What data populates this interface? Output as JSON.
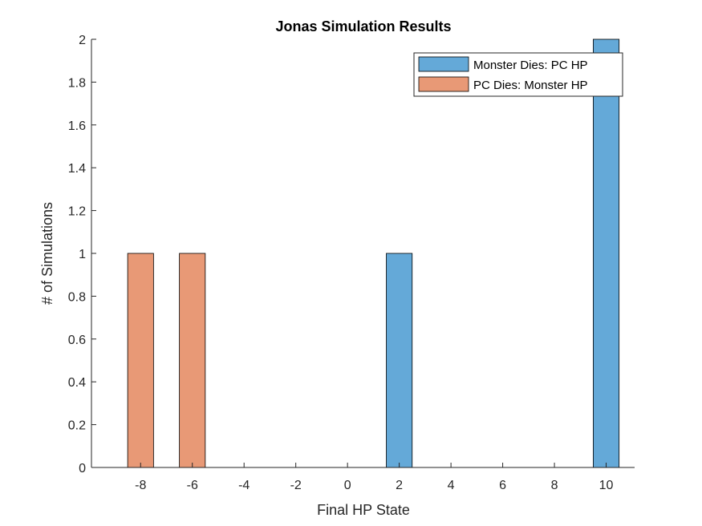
{
  "chart_data": {
    "type": "bar",
    "title": "Jonas Simulation Results",
    "xlabel": "Final HP State",
    "ylabel": "# of Simulations",
    "xlim": [
      -9.9,
      11.1
    ],
    "ylim": [
      0,
      2
    ],
    "xticks": [
      -8,
      -6,
      -4,
      -2,
      0,
      2,
      4,
      6,
      8,
      10
    ],
    "yticks": [
      0,
      0.2,
      0.4,
      0.6,
      0.8,
      1,
      1.2,
      1.4,
      1.6,
      1.8,
      2
    ],
    "bar_width": 1,
    "grid": false,
    "legend_placement": "top-right",
    "series": [
      {
        "name": "Monster Dies: PC HP",
        "color": "#64a9d8",
        "points": [
          {
            "x": 2,
            "y": 1
          },
          {
            "x": 10,
            "y": 2
          }
        ]
      },
      {
        "name": "PC Dies: Monster HP",
        "color": "#e89976",
        "points": [
          {
            "x": -8,
            "y": 1
          },
          {
            "x": -6,
            "y": 1
          }
        ]
      }
    ]
  }
}
